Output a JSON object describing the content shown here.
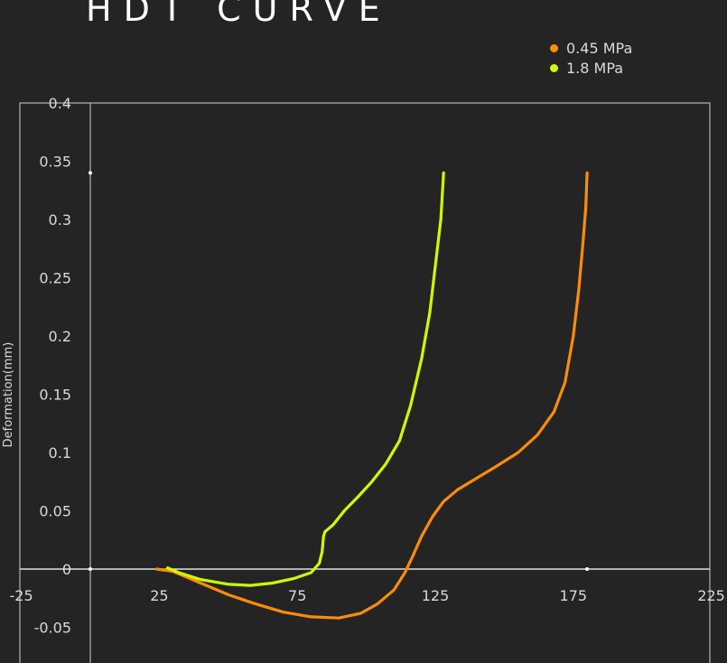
{
  "chart_data": {
    "type": "line",
    "title": "HDT CURVE",
    "xlabel": "",
    "ylabel": "Deformation(mm)",
    "xlim": [
      -25,
      225
    ],
    "ylim": [
      -0.09,
      0.4
    ],
    "xticks": [
      "-25",
      "25",
      "75",
      "125",
      "175",
      "225"
    ],
    "yticks": [
      "0.4",
      "0.35",
      "0.3",
      "0.25",
      "0.2",
      "0.15",
      "0.1",
      "0.05",
      "0",
      "-0.05"
    ],
    "legend_position": "top-right",
    "series": [
      {
        "name": "0.45 MPa",
        "color": "#ff8c0a",
        "points": [
          [
            24,
            0
          ],
          [
            30,
            -0.002
          ],
          [
            40,
            -0.012
          ],
          [
            50,
            -0.022
          ],
          [
            60,
            -0.03
          ],
          [
            70,
            -0.037
          ],
          [
            80,
            -0.041
          ],
          [
            90,
            -0.042
          ],
          [
            98,
            -0.038
          ],
          [
            104,
            -0.03
          ],
          [
            110,
            -0.018
          ],
          [
            114,
            -0.003
          ],
          [
            117,
            0.012
          ],
          [
            120,
            0.028
          ],
          [
            124,
            0.045
          ],
          [
            128,
            0.058
          ],
          [
            133,
            0.068
          ],
          [
            140,
            0.078
          ],
          [
            147,
            0.088
          ],
          [
            155,
            0.1
          ],
          [
            162,
            0.115
          ],
          [
            168,
            0.135
          ],
          [
            172,
            0.16
          ],
          [
            175,
            0.2
          ],
          [
            177,
            0.24
          ],
          [
            178.5,
            0.28
          ],
          [
            179.5,
            0.31
          ],
          [
            180,
            0.34
          ]
        ]
      },
      {
        "name": "1.8 MPa",
        "color": "#ccff00",
        "points": [
          [
            28,
            0.001
          ],
          [
            32,
            -0.003
          ],
          [
            40,
            -0.009
          ],
          [
            50,
            -0.013
          ],
          [
            58,
            -0.014
          ],
          [
            66,
            -0.012
          ],
          [
            74,
            -0.008
          ],
          [
            80,
            -0.003
          ],
          [
            83,
            0.005
          ],
          [
            84,
            0.015
          ],
          [
            84.5,
            0.028
          ],
          [
            85,
            0.032
          ],
          [
            88,
            0.038
          ],
          [
            92,
            0.05
          ],
          [
            97,
            0.062
          ],
          [
            102,
            0.075
          ],
          [
            107,
            0.09
          ],
          [
            112,
            0.11
          ],
          [
            116,
            0.14
          ],
          [
            120,
            0.18
          ],
          [
            123,
            0.22
          ],
          [
            125,
            0.26
          ],
          [
            127,
            0.3
          ],
          [
            128,
            0.34
          ]
        ]
      }
    ],
    "markers": [
      [
        0,
        0.34
      ],
      [
        0,
        0
      ],
      [
        180,
        0
      ]
    ]
  }
}
